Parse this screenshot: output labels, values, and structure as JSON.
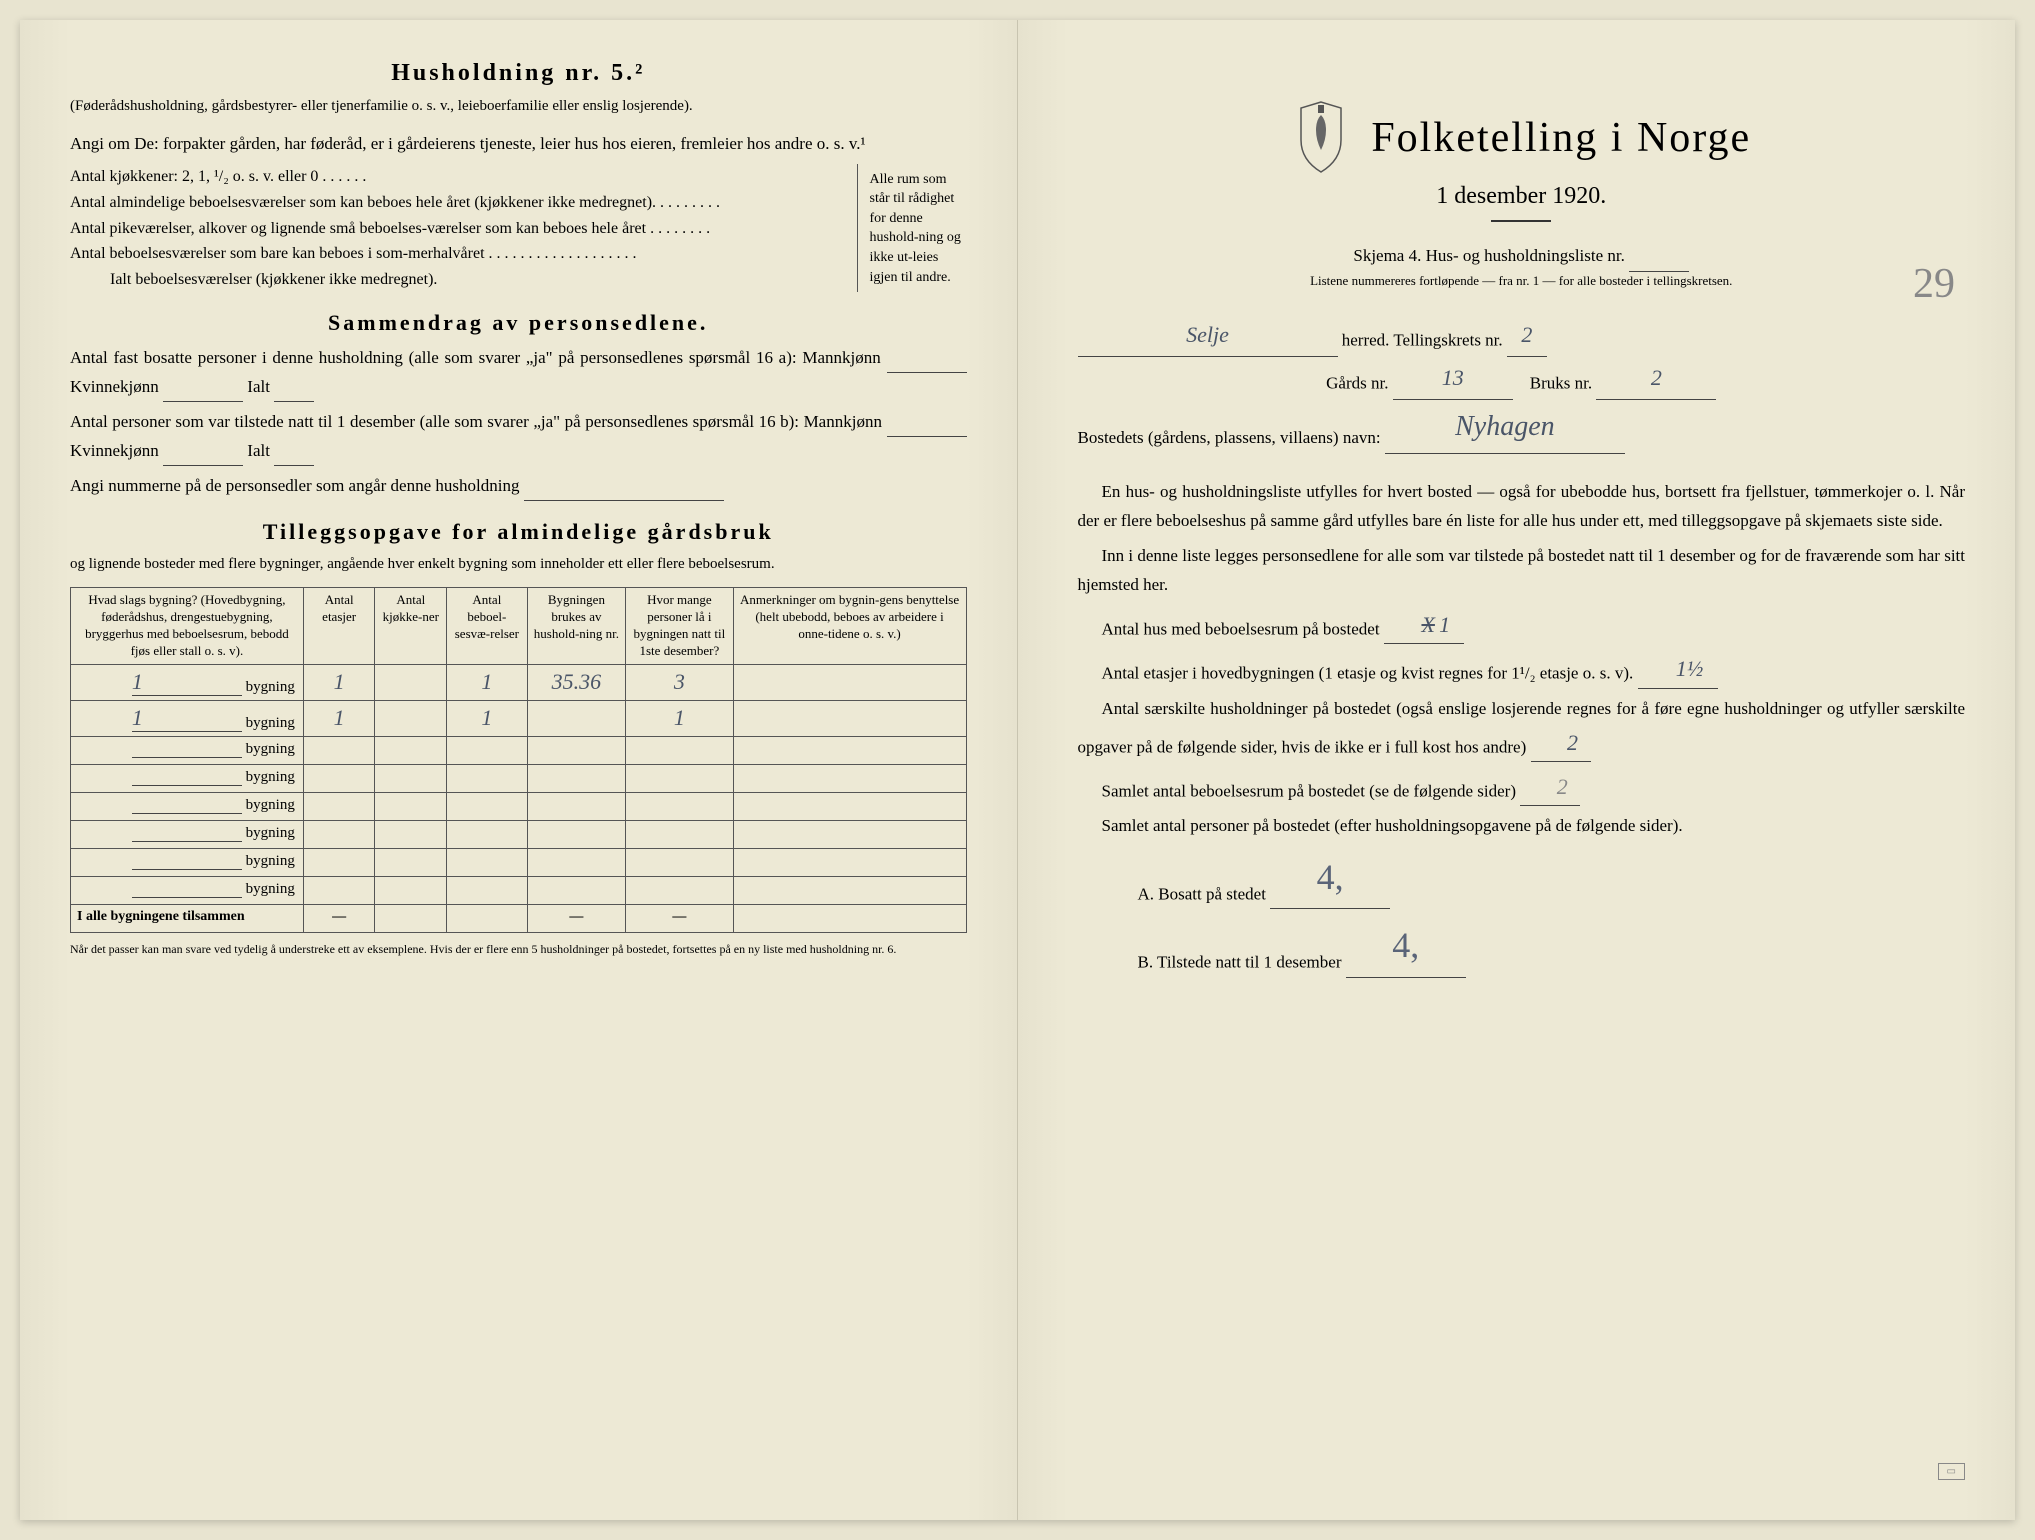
{
  "left": {
    "heading": "Husholdning nr. 5.²",
    "intro1": "(Føderådshusholdning, gårdsbestyrer- eller tjenerfamilie o. s. v., leieboerfamilie eller enslig losjerende).",
    "intro2": "Angi om De: forpakter gården, har føderåd, er i gårdeierens tjeneste, leier hus hos eieren, fremleier hos andre o. s. v.¹",
    "rows": [
      "Antal kjøkkener: 2, 1, ¹/₂ o. s. v. eller 0 . . . . . .",
      "Antal almindelige beboelsesværelser som kan beboes hele året (kjøkkener ikke medregnet). . . . . . . . .",
      "Antal pikeværelser, alkover og lignende små beboelses-værelser som kan beboes hele året . . . . . . . .",
      "Antal beboelsesværelser som bare kan beboes i som-merhalvåret . . . . . . . . . . . . . . . . . . .",
      "Ialt beboelsesværelser (kjøkkener ikke medregnet)."
    ],
    "bracket_text": "Alle rum som står til rådighet for denne hushold-ning og ikke ut-leies igjen til andre.",
    "section2_heading": "Sammendrag av personsedlene.",
    "section2_body1": "Antal fast bosatte personer i denne husholdning (alle som svarer „ja\" på personsedlenes spørsmål 16 a): Mannkjønn",
    "section2_kvinne": "Kvinnekjønn",
    "section2_ialt": "Ialt",
    "section2_body2": "Antal personer som var tilstede natt til 1 desember (alle som svarer „ja\" på personsedlenes spørsmål 16 b): Mannkjønn",
    "section2_body3": "Angi nummerne på de personsedler som angår denne husholdning",
    "section3_heading": "Tilleggsopgave for almindelige gårdsbruk",
    "section3_sub": "og lignende bosteder med flere bygninger, angående hver enkelt bygning som inneholder ett eller flere beboelsesrum.",
    "table": {
      "headers": [
        "Hvad slags bygning?\n(Hovedbygning, føderådshus, drengestuebygning, bryggerhus med beboelsesrum, bebodd fjøs eller stall o. s. v).",
        "Antal etasjer",
        "Antal kjøkke-ner",
        "Antal beboel-sesvæ-relser",
        "Bygningen brukes av hushold-ning nr.",
        "Hvor mange personer lå i bygningen natt til 1ste desember?",
        "Anmerkninger om bygnin-gens benyttelse (helt ubebodd, beboes av arbeidere i onne-tidene o. s. v.)"
      ],
      "rows": [
        {
          "label": "1",
          "suffix": "bygning",
          "cells": [
            "1",
            "",
            "1",
            "35.36",
            "3",
            ""
          ]
        },
        {
          "label": "1",
          "suffix": "bygning",
          "cells": [
            "1",
            "",
            "1",
            "",
            "1",
            ""
          ]
        },
        {
          "label": "",
          "suffix": "bygning",
          "cells": [
            "",
            "",
            "",
            "",
            "",
            ""
          ]
        },
        {
          "label": "",
          "suffix": "bygning",
          "cells": [
            "",
            "",
            "",
            "",
            "",
            ""
          ]
        },
        {
          "label": "",
          "suffix": "bygning",
          "cells": [
            "",
            "",
            "",
            "",
            "",
            ""
          ]
        },
        {
          "label": "",
          "suffix": "bygning",
          "cells": [
            "",
            "",
            "",
            "",
            "",
            ""
          ]
        },
        {
          "label": "",
          "suffix": "bygning",
          "cells": [
            "",
            "",
            "",
            "",
            "",
            ""
          ]
        },
        {
          "label": "",
          "suffix": "bygning",
          "cells": [
            "",
            "",
            "",
            "",
            "",
            ""
          ]
        }
      ],
      "sum_label": "I alle bygningene tilsammen",
      "sum_cells": [
        "—",
        "",
        "",
        "—",
        "—",
        ""
      ]
    },
    "footnote": "Når det passer kan man svare ved tydelig å understreke ett av eksemplene.\nHvis der er flere enn 5 husholdninger på bostedet, fortsettes på en ny liste med husholdning nr. 6."
  },
  "right": {
    "main_title": "Folketelling i Norge",
    "date": "1 desember 1920.",
    "skjema_line": "Skjema 4.   Hus- og husholdningsliste nr.",
    "skjema_num": "29",
    "listene_line": "Listene nummereres fortløpende — fra nr. 1 — for alle bosteder i tellingskretsen.",
    "herred_value": "Selje",
    "herred_label": "herred.   Tellingskrets nr.",
    "krets_value": "2",
    "gards_label": "Gårds nr.",
    "gards_value": "13",
    "bruks_label": "Bruks nr.",
    "bruks_value": "2",
    "bosted_label": "Bostedets (gårdens, plassens, villaens) navn:",
    "bosted_value": "Nyhagen",
    "para1": "En hus- og husholdningsliste utfylles for hvert bosted — også for ubebodde hus, bortsett fra fjellstuer, tømmerkojer o. l.  Når der er flere beboelseshus på samme gård utfylles bare én liste for alle hus under ett, med tilleggsopgave på skjemaets siste side.",
    "para2": "Inn i denne liste legges personsedlene for alle som var tilstede på bostedet natt til 1 desember og for de fraværende som har sitt hjemsted her.",
    "q1_label": "Antal hus med beboelsesrum på bostedet",
    "q1_value": "1",
    "q1_strikeout": "X",
    "q2_label": "Antal etasjer i hovedbygningen (1 etasje og kvist regnes for 1¹/₂ etasje o. s. v).",
    "q2_value": "1½",
    "q3_label": "Antal særskilte husholdninger på bostedet (også enslige losjerende regnes for å føre egne husholdninger og utfyller særskilte opgaver på de følgende sider, hvis de ikke er i full kost hos andre)",
    "q3_value": "2",
    "q4_label": "Samlet antal beboelsesrum på bostedet (se de følgende sider)",
    "q4_value": "2",
    "q5_label": "Samlet antal personer på bostedet (efter husholdningsopgavene på de følgende sider).",
    "q5a_label": "A.  Bosatt på stedet",
    "q5a_value": "4,",
    "q5b_label": "B.  Tilstede natt til 1 desember",
    "q5b_value": "4,"
  },
  "colors": {
    "paper": "#ede9d5",
    "ink": "#2a2a2a",
    "handwriting": "#4a5568",
    "pencil": "#888888"
  }
}
